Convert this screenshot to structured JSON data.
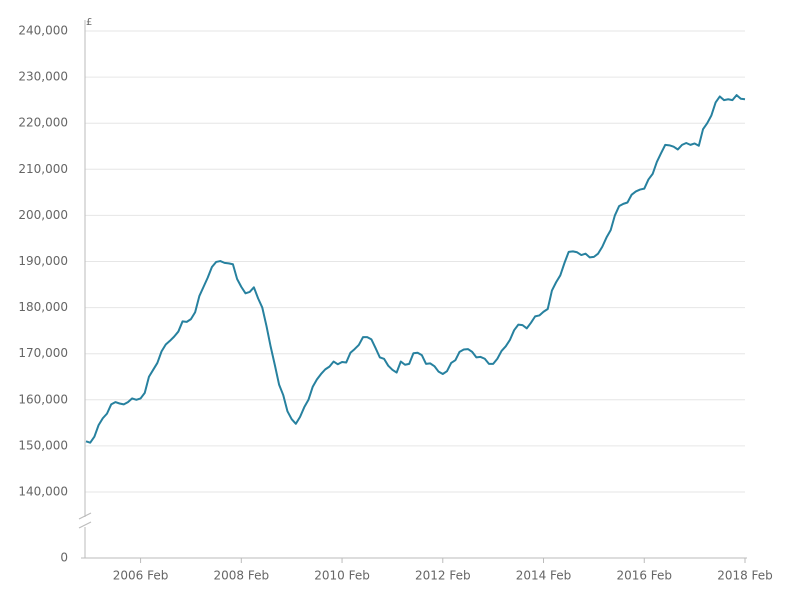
{
  "chart_data": {
    "type": "line",
    "y_label": "£",
    "color": "#27819f",
    "grid": true,
    "axis_break": true,
    "categories": [
      null,
      null,
      null,
      null,
      null,
      null,
      null,
      null,
      null,
      null,
      null,
      null,
      null,
      "2006 Feb",
      null,
      null,
      null,
      null,
      null,
      null,
      null,
      null,
      null,
      null,
      null,
      null,
      null,
      null,
      null,
      null,
      null,
      null,
      null,
      null,
      null,
      null,
      null,
      "2008 Feb",
      null,
      null,
      null,
      null,
      null,
      null,
      null,
      null,
      null,
      null,
      null,
      null,
      null,
      null,
      null,
      null,
      null,
      null,
      null,
      null,
      null,
      null,
      null,
      "2010 Feb",
      null,
      null,
      null,
      null,
      null,
      null,
      null,
      null,
      null,
      null,
      null,
      null,
      null,
      null,
      null,
      null,
      null,
      null,
      null,
      null,
      null,
      null,
      null,
      "2012 Feb",
      null,
      null,
      null,
      null,
      null,
      null,
      null,
      null,
      null,
      null,
      null,
      null,
      null,
      null,
      null,
      null,
      null,
      null,
      null,
      null,
      null,
      null,
      null,
      "2014 Feb",
      null,
      null,
      null,
      null,
      null,
      null,
      null,
      null,
      null,
      null,
      null,
      null,
      null,
      null,
      null,
      null,
      null,
      null,
      null,
      null,
      null,
      null,
      null,
      "2016 Feb",
      null,
      null,
      null,
      null,
      null,
      null,
      null,
      null,
      null,
      null,
      null,
      null,
      null,
      null,
      null,
      null,
      null,
      null,
      null,
      null,
      null,
      null,
      null,
      "2018 Feb"
    ],
    "values": [
      151000,
      150700,
      152000,
      154500,
      156000,
      157000,
      159000,
      159500,
      159200,
      159000,
      159500,
      160300,
      160000,
      160300,
      161500,
      165000,
      166500,
      168000,
      170500,
      172000,
      172800,
      173700,
      174800,
      177000,
      176900,
      177500,
      179000,
      182500,
      184500,
      186500,
      188800,
      189900,
      190100,
      189700,
      189600,
      189400,
      186200,
      184500,
      183100,
      183400,
      184400,
      182000,
      180000,
      176000,
      171500,
      167500,
      163300,
      161000,
      157500,
      155800,
      154800,
      156300,
      158400,
      160000,
      162800,
      164400,
      165600,
      166600,
      167200,
      168300,
      167700,
      168200,
      168100,
      170200,
      171000,
      171900,
      173600,
      173600,
      173100,
      171200,
      169200,
      168900,
      167400,
      166500,
      165900,
      168300,
      167600,
      167800,
      170100,
      170200,
      169700,
      167800,
      167900,
      167300,
      166100,
      165600,
      166200,
      168000,
      168600,
      170400,
      170900,
      171000,
      170400,
      169200,
      169300,
      168900,
      167800,
      167800,
      168900,
      170600,
      171600,
      173000,
      175100,
      176300,
      176200,
      175500,
      176700,
      178100,
      178300,
      179100,
      179700,
      183700,
      185500,
      187000,
      189700,
      192100,
      192200,
      192000,
      191400,
      191700,
      190900,
      191000,
      191700,
      193200,
      195200,
      196800,
      200000,
      202000,
      202500,
      202800,
      204500,
      205200,
      205600,
      205800,
      207800,
      209000,
      211600,
      213500,
      215300,
      215200,
      214900,
      214300,
      215300,
      215700,
      215300,
      215600,
      215100,
      218700,
      220000,
      221700,
      224500,
      225800,
      225000,
      225200,
      225000,
      226100,
      225300,
      225200
    ],
    "ylim": [
      0,
      240000
    ],
    "yticks": [
      0,
      {
        "value": 140000,
        "label": "140,000"
      },
      {
        "value": 150000,
        "label": "150,000"
      },
      {
        "value": 160000,
        "label": "160,000"
      },
      {
        "value": 170000,
        "label": "170,000"
      },
      {
        "value": 180000,
        "label": "180,000"
      },
      {
        "value": 190000,
        "label": "190,000"
      },
      {
        "value": 200000,
        "label": "200,000"
      },
      {
        "value": 210000,
        "label": "210,000"
      },
      {
        "value": 220000,
        "label": "220,000"
      },
      {
        "value": 230000,
        "label": "230,000"
      },
      {
        "value": 240000,
        "label": "240,000"
      }
    ]
  }
}
